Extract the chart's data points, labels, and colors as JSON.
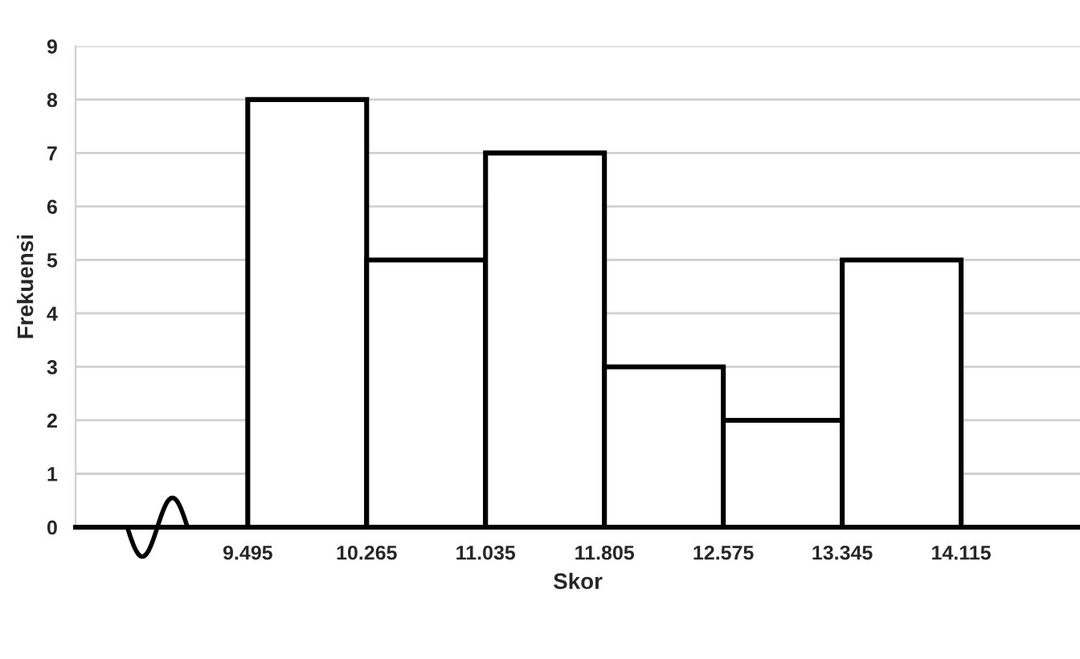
{
  "chart_data": {
    "type": "histogram",
    "xlabel": "Skor",
    "ylabel": "Frekuensi",
    "bins": [
      9.495,
      10.265,
      11.035,
      11.805,
      12.575,
      13.345,
      14.115
    ],
    "values": [
      8,
      5,
      7,
      3,
      2,
      5
    ],
    "color": "#ffffff",
    "xlim": [
      8.38,
      14.885
    ],
    "xticks": [
      9.495,
      10.265,
      11.035,
      11.805,
      12.575,
      13.345,
      14.115
    ],
    "ylim": [
      0,
      9
    ],
    "yticks": [
      0,
      1,
      2,
      3,
      4,
      5,
      6,
      7,
      8,
      9
    ],
    "grid": "y"
  }
}
